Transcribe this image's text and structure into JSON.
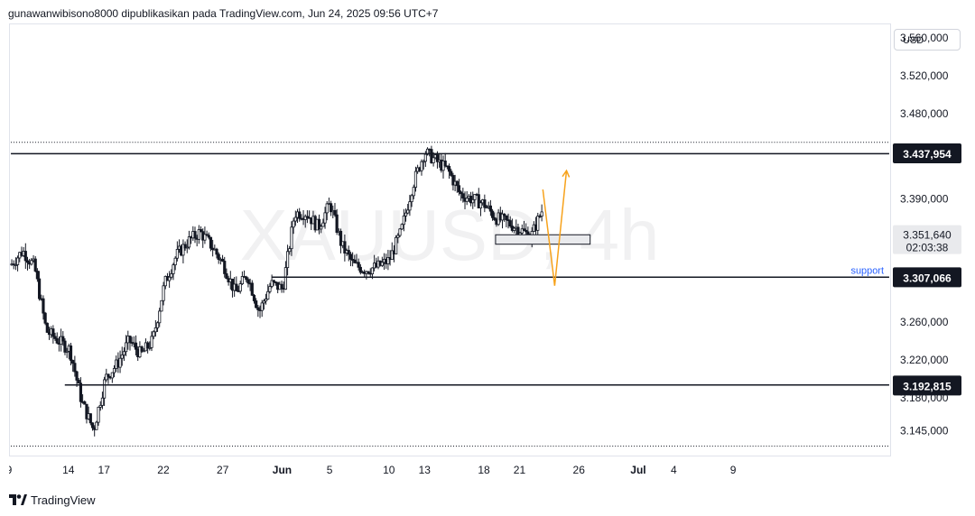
{
  "header": {
    "text": "gunawanwibisono8000 dipublikasikan pada TradingView.com, Jun 24, 2025 09:56 UTC+7"
  },
  "watermark": {
    "symbol": "XAUUSD",
    "interval": "4h"
  },
  "currency": "USD",
  "footer": {
    "brand": "TradingView"
  },
  "colors": {
    "up": "#131722",
    "down": "#131722",
    "level_line": "#131722",
    "support_text": "#2962ff",
    "projection": "#f7a21b",
    "zone_fill": "#e9eaed"
  },
  "chart_data": {
    "type": "candlestick",
    "symbol": "XAUUSD",
    "interval": "4h",
    "y_axis": {
      "ticks": [
        3145,
        3180,
        3220,
        3260,
        3307.066,
        3351.64,
        3390,
        3437.954,
        3480,
        3520,
        3560
      ],
      "tick_labels": [
        "3.145,000",
        "3.180,000",
        "3.220,000",
        "3.260,000",
        "3.307,066",
        "3.351,640",
        "3.390,000",
        "3.437,954",
        "3.480,000",
        "3.520,000",
        "3.560,000"
      ],
      "ylim": [
        3118,
        3575
      ]
    },
    "x_axis": {
      "tick_labels": [
        "9",
        "14",
        "17",
        "22",
        "27",
        "Jun",
        "5",
        "10",
        "13",
        "18",
        "21",
        "26",
        "Jul",
        "4",
        "9"
      ],
      "tick_dates": [
        "2025-05-09",
        "2025-05-14",
        "2025-05-17",
        "2025-05-22",
        "2025-05-27",
        "2025-06-01",
        "2025-06-05",
        "2025-06-10",
        "2025-06-13",
        "2025-06-18",
        "2025-06-21",
        "2025-06-26",
        "2025-07-01",
        "2025-07-04",
        "2025-07-09"
      ]
    },
    "levels": [
      {
        "price": 3437.954,
        "label": "3.437,954"
      },
      {
        "price": 3307.066,
        "label": "3.307,066",
        "name": "support"
      },
      {
        "price": 3192.815,
        "label": "3.192,815"
      }
    ],
    "last_price": {
      "price": 3351.64,
      "label": "3.351,640",
      "countdown": "02:03:38"
    },
    "range_dotted": {
      "high": 3450,
      "low": 3128
    },
    "zone": {
      "start": "2025-06-19",
      "end": "2025-06-27",
      "top": 3352,
      "bottom": 3342
    },
    "projection": [
      {
        "date": "2025-06-23",
        "price": 3400
      },
      {
        "date": "2025-06-24",
        "price": 3298
      },
      {
        "date": "2025-06-25",
        "price": 3420
      }
    ],
    "path": [
      [
        "2025-05-09",
        3320
      ],
      [
        "2025-05-10",
        3335
      ],
      [
        "2025-05-11",
        3318
      ],
      [
        "2025-05-12",
        3250
      ],
      [
        "2025-05-13",
        3240
      ],
      [
        "2025-05-14",
        3230
      ],
      [
        "2025-05-15",
        3175
      ],
      [
        "2025-05-16",
        3145
      ],
      [
        "2025-05-17",
        3200
      ],
      [
        "2025-05-18",
        3215
      ],
      [
        "2025-05-19",
        3240
      ],
      [
        "2025-05-20",
        3225
      ],
      [
        "2025-05-21",
        3240
      ],
      [
        "2025-05-22",
        3300
      ],
      [
        "2025-05-23",
        3330
      ],
      [
        "2025-05-24",
        3345
      ],
      [
        "2025-05-25",
        3355
      ],
      [
        "2025-05-26",
        3340
      ],
      [
        "2025-05-27",
        3320
      ],
      [
        "2025-05-28",
        3290
      ],
      [
        "2025-05-29",
        3310
      ],
      [
        "2025-05-30",
        3270
      ],
      [
        "2025-05-31",
        3300
      ],
      [
        "2025-06-01",
        3295
      ],
      [
        "2025-06-02",
        3375
      ],
      [
        "2025-06-03",
        3375
      ],
      [
        "2025-06-04",
        3360
      ],
      [
        "2025-06-05",
        3385
      ],
      [
        "2025-06-06",
        3340
      ],
      [
        "2025-06-07",
        3320
      ],
      [
        "2025-06-08",
        3315
      ],
      [
        "2025-06-09",
        3318
      ],
      [
        "2025-06-10",
        3325
      ],
      [
        "2025-06-11",
        3355
      ],
      [
        "2025-06-12",
        3405
      ],
      [
        "2025-06-13",
        3440
      ],
      [
        "2025-06-14",
        3430
      ],
      [
        "2025-06-15",
        3420
      ],
      [
        "2025-06-16",
        3395
      ],
      [
        "2025-06-17",
        3390
      ],
      [
        "2025-06-18",
        3385
      ],
      [
        "2025-06-19",
        3370
      ],
      [
        "2025-06-20",
        3365
      ],
      [
        "2025-06-21",
        3358
      ],
      [
        "2025-06-22",
        3350
      ],
      [
        "2025-06-23",
        3380
      ]
    ]
  }
}
